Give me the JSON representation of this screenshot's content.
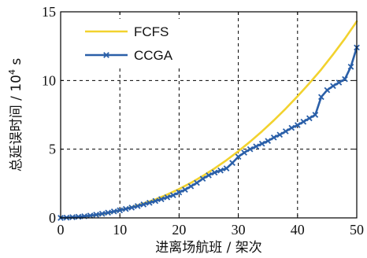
{
  "chart_data": {
    "type": "line",
    "title": "",
    "xlabel": "进离场航班 / 架次",
    "ylabel": "总延误时间 / 10⁴ s",
    "ylabel_prefix": "总延误时间 / 10",
    "ylabel_exp": "4",
    "ylabel_suffix": " s",
    "xlim": [
      0,
      50
    ],
    "ylim": [
      0,
      15
    ],
    "xticks": [
      0,
      10,
      20,
      30,
      40,
      50
    ],
    "yticks": [
      0,
      5,
      10,
      15
    ],
    "grid": true,
    "legend": "top-left",
    "series": [
      {
        "name": "FCFS",
        "color": "#f2d22e",
        "marker": "none",
        "x": [
          0,
          2,
          4,
          6,
          8,
          10,
          12,
          14,
          16,
          18,
          20,
          22,
          24,
          26,
          28,
          30,
          32,
          34,
          36,
          38,
          40,
          42,
          44,
          46,
          48,
          50
        ],
        "y": [
          0,
          0.05,
          0.1,
          0.2,
          0.35,
          0.55,
          0.78,
          1.05,
          1.35,
          1.7,
          2.1,
          2.55,
          3.05,
          3.6,
          4.2,
          4.85,
          5.55,
          6.3,
          7.1,
          7.95,
          8.85,
          9.8,
          10.8,
          11.9,
          13.05,
          14.3
        ]
      },
      {
        "name": "CCGA",
        "color": "#2a5fa8",
        "marker": "x",
        "x": [
          0,
          1,
          2,
          3,
          4,
          5,
          6,
          7,
          8,
          9,
          10,
          11,
          12,
          13,
          14,
          15,
          16,
          17,
          18,
          19,
          20,
          21,
          22,
          23,
          24,
          25,
          26,
          27,
          28,
          29,
          30,
          31,
          32,
          33,
          34,
          35,
          36,
          37,
          38,
          39,
          40,
          41,
          42,
          43,
          44,
          45,
          46,
          47,
          48,
          49,
          50
        ],
        "y": [
          0,
          0.02,
          0.05,
          0.08,
          0.12,
          0.17,
          0.23,
          0.3,
          0.38,
          0.47,
          0.55,
          0.65,
          0.75,
          0.86,
          0.98,
          1.1,
          1.23,
          1.36,
          1.5,
          1.65,
          1.85,
          2.05,
          2.3,
          2.55,
          2.85,
          3.1,
          3.3,
          3.45,
          3.6,
          4.0,
          4.45,
          4.75,
          5.0,
          5.2,
          5.4,
          5.6,
          5.85,
          6.05,
          6.3,
          6.55,
          6.75,
          7.0,
          7.25,
          7.5,
          8.8,
          9.3,
          9.6,
          9.85,
          10.1,
          11.0,
          12.4
        ]
      }
    ]
  }
}
